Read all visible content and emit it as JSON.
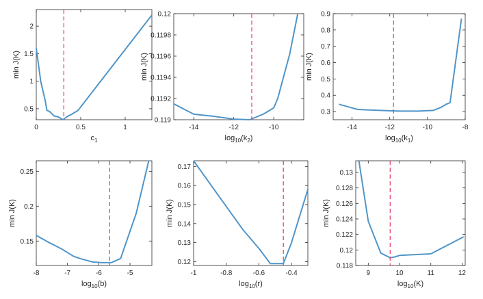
{
  "chart_data": [
    {
      "type": "line",
      "xlabel": "c",
      "xlabel_sub": "1",
      "ylabel": "min J(K)",
      "xlim": [
        0,
        1.3
      ],
      "ylim": [
        0.3,
        2.3
      ],
      "xticks": [
        0,
        0.5,
        1
      ],
      "xtick_labels": [
        "0",
        "0.5",
        "1"
      ],
      "yticks": [
        0.5,
        1,
        1.5,
        2
      ],
      "ytick_labels": [
        "0.5",
        "1",
        "1.5",
        "2"
      ],
      "x": [
        0,
        0.05,
        0.1,
        0.12,
        0.15,
        0.2,
        0.25,
        0.3,
        0.35,
        0.4,
        0.47,
        1.3
      ],
      "y": [
        1.6,
        1.0,
        0.65,
        0.47,
        0.45,
        0.37,
        0.35,
        0.3,
        0.36,
        0.4,
        0.47,
        2.2
      ],
      "vline": 0.31,
      "line_color": "#4f95c9",
      "vline_color": "#f0436b"
    },
    {
      "type": "line",
      "xlabel": "log",
      "xlabel_sub": "10",
      "xlabel_suffix": "(k",
      "xlabel_suffix_sub": "2",
      "xlabel_end": ")",
      "ylabel": "min J(K)",
      "xlim": [
        -15,
        -8.5
      ],
      "ylim": [
        0.119,
        0.12
      ],
      "xticks": [
        -14,
        -12,
        -10
      ],
      "xtick_labels": [
        "-14",
        "-12",
        "-10"
      ],
      "yticks": [
        0.119,
        0.1192,
        0.1194,
        0.1196,
        0.1198,
        0.12
      ],
      "ytick_labels": [
        "0.119",
        "0.1192",
        "0.1194",
        "0.1196",
        "0.1198",
        "0.12"
      ],
      "x": [
        -15,
        -14,
        -13,
        -12,
        -11.2,
        -10.5,
        -10,
        -9.8,
        -9.2,
        -8.8
      ],
      "y": [
        0.11915,
        0.119052,
        0.119032,
        0.119006,
        0.119,
        0.119055,
        0.119112,
        0.119202,
        0.11962,
        0.12
      ],
      "vline": -11.1,
      "line_color": "#4f95c9",
      "vline_color": "#f0436b"
    },
    {
      "type": "line",
      "xlabel": "log",
      "xlabel_sub": "10",
      "xlabel_suffix": "(k",
      "xlabel_suffix_sub": "1",
      "xlabel_end": ")",
      "ylabel": "min J(K)",
      "xlim": [
        -15,
        -8
      ],
      "ylim": [
        0.25,
        0.9
      ],
      "xticks": [
        -14,
        -12,
        -10,
        -8
      ],
      "xtick_labels": [
        "-14",
        "-12",
        "-10",
        "-8"
      ],
      "yticks": [
        0.3,
        0.4,
        0.5,
        0.6,
        0.7,
        0.8,
        0.9
      ],
      "ytick_labels": [
        "0.3",
        "0.4",
        "0.5",
        "0.6",
        "0.7",
        "0.8",
        "0.9"
      ],
      "x": [
        -14.7,
        -13.7,
        -12.5,
        -11.5,
        -10.5,
        -9.7,
        -9.3,
        -9.0,
        -8.8,
        -8.2
      ],
      "y": [
        0.345,
        0.313,
        0.307,
        0.303,
        0.303,
        0.307,
        0.325,
        0.345,
        0.355,
        0.87
      ],
      "vline": -11.8,
      "line_color": "#4f95c9",
      "vline_color": "#f0436b"
    },
    {
      "type": "line",
      "xlabel": "log",
      "xlabel_sub": "10",
      "xlabel_suffix": "(b)",
      "ylabel": "min J(K)",
      "xlim": [
        -8,
        -4.3
      ],
      "ylim": [
        0.115,
        0.265
      ],
      "xticks": [
        -8,
        -7,
        -6,
        -5
      ],
      "xtick_labels": [
        "-8",
        "-7",
        "-6",
        "-5"
      ],
      "yticks": [
        0.15,
        0.2,
        0.25
      ],
      "ytick_labels": [
        "0.15",
        "0.2",
        "0.25"
      ],
      "x": [
        -8,
        -7.6,
        -7.2,
        -6.8,
        -6.6,
        -6.2,
        -5.9,
        -5.6,
        -5.3,
        -4.8,
        -4.4
      ],
      "y": [
        0.158,
        0.148,
        0.139,
        0.128,
        0.125,
        0.12,
        0.119,
        0.119,
        0.125,
        0.19,
        0.265
      ],
      "vline": -5.65,
      "line_color": "#4f95c9",
      "vline_color": "#f0436b"
    },
    {
      "type": "line",
      "xlabel": "log",
      "xlabel_sub": "10",
      "xlabel_suffix": "(r)",
      "ylabel": "min J(K)",
      "xlim": [
        -1,
        -0.3
      ],
      "ylim": [
        0.118,
        0.173
      ],
      "xticks": [
        -1,
        -0.8,
        -0.6,
        -0.4
      ],
      "xtick_labels": [
        "-1",
        "-0.8",
        "-0.6",
        "-0.4"
      ],
      "yticks": [
        0.12,
        0.13,
        0.14,
        0.15,
        0.16,
        0.17
      ],
      "ytick_labels": [
        "0.12",
        "0.13",
        "0.14",
        "0.15",
        "0.16",
        "0.17"
      ],
      "x": [
        -1,
        -0.85,
        -0.7,
        -0.6,
        -0.53,
        -0.47,
        -0.45,
        -0.4,
        -0.3
      ],
      "y": [
        0.173,
        0.155,
        0.137,
        0.127,
        0.119,
        0.119,
        0.119,
        0.13,
        0.158
      ],
      "vline": -0.45,
      "line_color": "#4f95c9",
      "vline_color": "#f0436b"
    },
    {
      "type": "line",
      "xlabel": "log",
      "xlabel_sub": "10",
      "xlabel_suffix": "(K)",
      "ylabel": "min J(K)",
      "xlim": [
        8.6,
        12.1
      ],
      "ylim": [
        0.118,
        0.1315
      ],
      "xticks": [
        9,
        10,
        11,
        12
      ],
      "xtick_labels": [
        "9",
        "10",
        "11",
        "12"
      ],
      "yticks": [
        0.118,
        0.12,
        0.122,
        0.124,
        0.126,
        0.128,
        0.13
      ],
      "ytick_labels": [
        "0.118",
        "0.12",
        "0.122",
        "0.124",
        "0.126",
        "0.128",
        "0.13"
      ],
      "x": [
        8.7,
        9.0,
        9.4,
        9.7,
        9.85,
        10.0,
        11.0,
        12.05
      ],
      "y": [
        0.1315,
        0.1237,
        0.1196,
        0.119,
        0.1191,
        0.1193,
        0.1195,
        0.1217
      ],
      "vline": 9.7,
      "line_color": "#4f95c9",
      "vline_color": "#f0436b"
    }
  ]
}
